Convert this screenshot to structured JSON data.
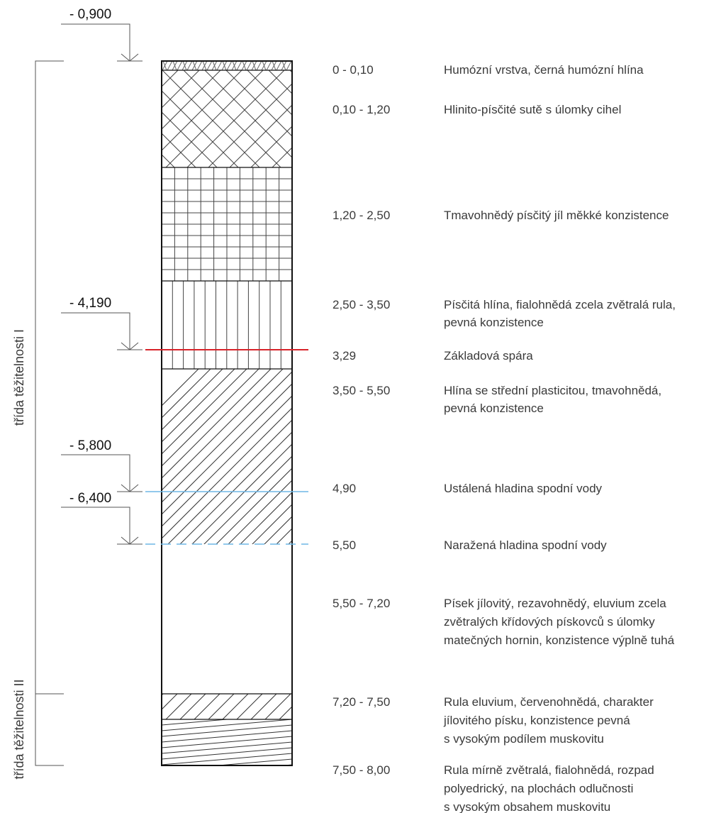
{
  "elevations": [
    {
      "label": "- 0,900"
    },
    {
      "label": "- 4,190"
    },
    {
      "label": "- 5,800"
    },
    {
      "label": "- 6,400"
    }
  ],
  "classes": [
    {
      "label": "třída těžitelnosti I"
    },
    {
      "label": "třída těžitelnosti II"
    }
  ],
  "layers": [
    {
      "depth": "0 - 0,10",
      "desc": [
        "Humózní vrstva, černá humózní hlína"
      ]
    },
    {
      "depth": "0,10 - 1,20",
      "desc": [
        "Hlinito-písčité sutě s úlomky cihel"
      ]
    },
    {
      "depth": "1,20 - 2,50",
      "desc": [
        "Tmavohnědý písčitý jíl měkké konzistence"
      ]
    },
    {
      "depth": "2,50 - 3,50",
      "desc": [
        "Písčitá hlína, fialohnědá zcela zvětralá rula,",
        "pevná konzistence"
      ]
    },
    {
      "depth": "3,50 - 5,50",
      "desc": [
        "Hlína se střední plasticitou, tmavohnědá,",
        "pevná konzistence"
      ]
    },
    {
      "depth": "5,50 - 7,20",
      "desc": [
        "Písek jílovitý, rezavohnědý, eluvium zcela",
        "zvětralých křídových pískovců s úlomky",
        "matečných hornin, konzistence výplně tuhá"
      ]
    },
    {
      "depth": "7,20 - 7,50",
      "desc": [
        "Rula eluvium, červenohnědá, charakter",
        "jílovitého písku, konzistence pevná",
        "s vysokým podílem muskovitu"
      ]
    },
    {
      "depth": "7,50 - 8,00",
      "desc": [
        "Rula mírně zvětralá, fialohnědá, rozpad",
        "polyedrický, na plochách odlučnosti",
        "s vysokým obsahem muskovitu"
      ]
    }
  ],
  "markers": [
    {
      "depth": "3,29",
      "desc": "Základová spára",
      "color": "#d8232a"
    },
    {
      "depth": "4,90",
      "desc": "Ustálená hladina spodní vody",
      "color": "#6fb7e6"
    },
    {
      "depth": "5,50",
      "desc": "Naražená hladina spodní vody",
      "color": "#6fb7e6"
    }
  ]
}
